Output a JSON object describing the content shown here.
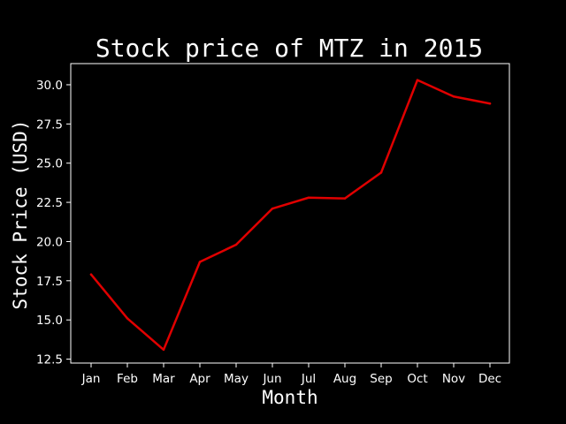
{
  "chart_data": {
    "type": "line",
    "title": "Stock price of MTZ in 2015",
    "xlabel": "Month",
    "ylabel": "Stock Price (USD)",
    "categories": [
      "Jan",
      "Feb",
      "Mar",
      "Apr",
      "May",
      "Jun",
      "Jul",
      "Aug",
      "Sep",
      "Oct",
      "Nov",
      "Dec"
    ],
    "series": [
      {
        "values": [
          17.9,
          15.1,
          13.1,
          18.7,
          19.8,
          22.1,
          22.8,
          22.75,
          24.4,
          30.3,
          29.25,
          28.8
        ],
        "color": "#e00000"
      }
    ],
    "ylim": [
      12.25,
      31.35
    ],
    "yticks": [
      "12.5",
      "15.0",
      "17.5",
      "20.0",
      "22.5",
      "25.0",
      "27.5",
      "30.0"
    ],
    "grid": false,
    "legend": false,
    "colors": {
      "background": "#000000",
      "foreground": "#ffffff",
      "line": "#e00000"
    }
  }
}
